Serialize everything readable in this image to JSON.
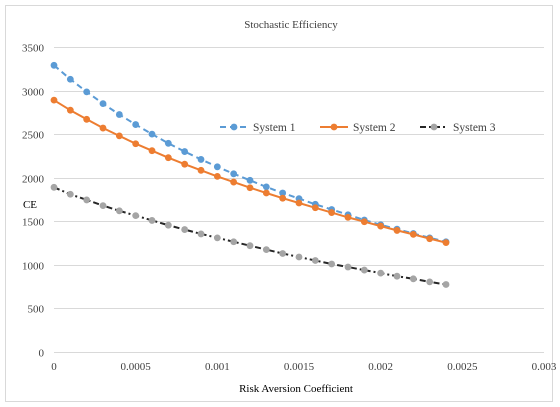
{
  "chart_data": {
    "type": "line",
    "title": "Stochastic Efficiency",
    "xlabel": "Risk Aversion Coefficient",
    "ylabel": "CE",
    "xlim": [
      0,
      0.003
    ],
    "ylim": [
      0,
      3500
    ],
    "x_ticks": [
      0,
      0.0005,
      0.001,
      0.0015,
      0.002,
      0.0025,
      0.003
    ],
    "x_tick_labels": [
      "0",
      "0.0005",
      "0.001",
      "0.0015",
      "0.002",
      "0.0025",
      "0.003"
    ],
    "y_ticks": [
      0,
      500,
      1000,
      1500,
      2000,
      2500,
      3000,
      3500
    ],
    "y_tick_labels": [
      "0",
      "500",
      "1000",
      "1500",
      "2000",
      "2500",
      "3000",
      "3500"
    ],
    "grid": true,
    "legend_position": "right-middle",
    "x": [
      0,
      0.0001,
      0.0002,
      0.0003,
      0.0004,
      0.0005,
      0.0006,
      0.0007,
      0.0008,
      0.0009,
      0.001,
      0.0011,
      0.0012,
      0.0013,
      0.0014,
      0.0015,
      0.0016,
      0.0017,
      0.0018,
      0.0019,
      0.002,
      0.0021,
      0.0022,
      0.0023,
      0.0024
    ],
    "series": [
      {
        "name": "System 1",
        "color": "#5b9bd5",
        "line_style": "dashed",
        "values": [
          3290,
          3130,
          2985,
          2850,
          2725,
          2610,
          2500,
          2395,
          2300,
          2210,
          2125,
          2045,
          1970,
          1895,
          1825,
          1760,
          1695,
          1635,
          1575,
          1515,
          1460,
          1410,
          1360,
          1310,
          1265
        ]
      },
      {
        "name": "System 2",
        "color": "#ed7d31",
        "line_style": "solid",
        "values": [
          2890,
          2775,
          2670,
          2570,
          2480,
          2390,
          2310,
          2230,
          2155,
          2085,
          2015,
          1950,
          1885,
          1825,
          1765,
          1710,
          1655,
          1600,
          1545,
          1495,
          1445,
          1395,
          1350,
          1300,
          1255
        ]
      },
      {
        "name": "System 3",
        "color": "#a5a5a5",
        "line_color": "#262626",
        "line_style": "dash-dot",
        "values": [
          1890,
          1810,
          1745,
          1680,
          1620,
          1565,
          1510,
          1455,
          1405,
          1355,
          1310,
          1265,
          1220,
          1175,
          1130,
          1090,
          1050,
          1010,
          975,
          940,
          905,
          870,
          840,
          805,
          775
        ]
      }
    ]
  }
}
